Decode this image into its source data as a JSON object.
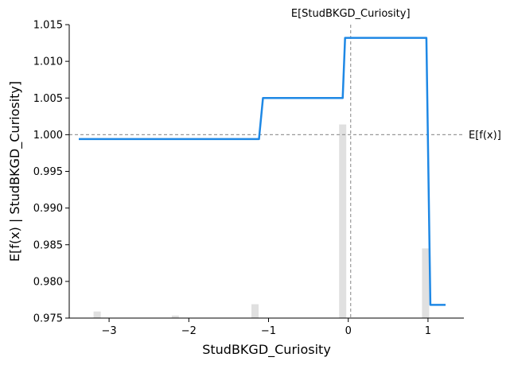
{
  "chart_data": {
    "type": "line",
    "xlabel": "StudBKGD_Curiosity",
    "ylabel": "E[f(x) | StudBKGD_Curiosity]",
    "xlim": [
      -3.5,
      1.45
    ],
    "ylim": [
      0.975,
      1.015
    ],
    "x_ticks": [
      -3,
      -2,
      -1,
      0,
      1
    ],
    "x_tick_labels": [
      "−3",
      "−2",
      "−1",
      "0",
      "1"
    ],
    "y_ticks": [
      0.975,
      0.98,
      0.985,
      0.99,
      0.995,
      1.0,
      1.005,
      1.01,
      1.015
    ],
    "y_tick_labels": [
      "0.975",
      "0.980",
      "0.985",
      "0.990",
      "0.995",
      "1.000",
      "1.005",
      "1.010",
      "1.015"
    ],
    "series": [
      {
        "color": "#1e88e5",
        "x": [
          -3.38,
          -1.12,
          -1.07,
          -0.07,
          -0.04,
          0.98,
          1.03,
          1.22
        ],
        "y": [
          0.9994,
          0.9994,
          1.005,
          1.005,
          1.0132,
          1.0132,
          0.9768,
          0.9768
        ]
      }
    ],
    "histogram": {
      "color": "#e0e0e0",
      "x": [
        -3.15,
        -2.17,
        -1.17,
        -0.07,
        0.97
      ],
      "heights": [
        0.0009,
        0.00035,
        0.0019,
        0.0264,
        0.0095
      ]
    },
    "reference_lines": {
      "expected_value": {
        "y": 1.0,
        "label": "E[f(x)]"
      },
      "feature_mean": {
        "x": 0.03,
        "label": "E[StudBKGD_Curiosity]"
      },
      "color": "#999999"
    },
    "grid": false
  }
}
